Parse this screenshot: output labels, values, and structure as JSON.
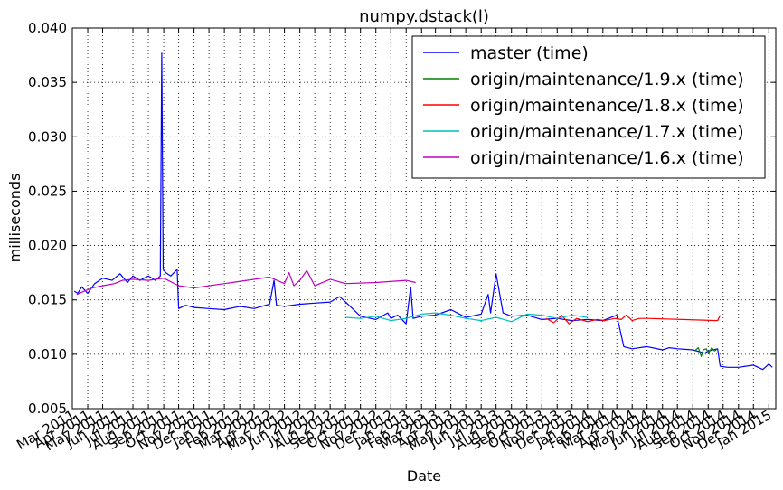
{
  "chart_data": {
    "type": "line",
    "title": "numpy.dstack(l)",
    "xlabel": "Date",
    "ylabel": "milliseconds",
    "ylim": [
      0.005,
      0.04
    ],
    "xlim": [
      "2011-03-01",
      "2015-01-15"
    ],
    "yticks": [
      "0.005",
      "0.010",
      "0.015",
      "0.020",
      "0.025",
      "0.030",
      "0.035",
      "0.040"
    ],
    "xticks": [
      "Mar 2011",
      "Apr 2011",
      "May 2011",
      "Jun 2011",
      "Jul 2011",
      "Aug 2011",
      "Sep 2011",
      "Oct 2011",
      "Nov 2011",
      "Dec 2011",
      "Jan 2012",
      "Feb 2012",
      "Mar 2012",
      "Apr 2012",
      "May 2012",
      "Jun 2012",
      "Jul 2012",
      "Aug 2012",
      "Sep 2012",
      "Oct 2012",
      "Nov 2012",
      "Dec 2012",
      "Jan 2013",
      "Feb 2013",
      "Mar 2013",
      "Apr 2013",
      "May 2013",
      "Jun 2013",
      "Jul 2013",
      "Aug 2013",
      "Sep 2013",
      "Oct 2013",
      "Nov 2013",
      "Dec 2013",
      "Jan 2014",
      "Feb 2014",
      "Mar 2014",
      "Apr 2014",
      "May 2014",
      "Jun 2014",
      "Jul 2014",
      "Aug 2014",
      "Sep 2014",
      "Oct 2014",
      "Nov 2014",
      "Dec 2014",
      "Jan 2015"
    ],
    "grid": true,
    "legend_position": "top-right",
    "series": [
      {
        "name": "master (time)",
        "color": "#0000ff",
        "x": [
          "2011-03-05",
          "2011-03-12",
          "2011-03-20",
          "2011-04-01",
          "2011-04-15",
          "2011-05-01",
          "2011-05-20",
          "2011-06-05",
          "2011-06-20",
          "2011-07-01",
          "2011-07-15",
          "2011-08-01",
          "2011-08-15",
          "2011-08-25",
          "2011-08-28",
          "2011-08-31",
          "2011-09-05",
          "2011-09-15",
          "2011-09-28",
          "2011-10-01",
          "2011-10-15",
          "2011-11-01",
          "2011-12-01",
          "2012-01-01",
          "2012-02-01",
          "2012-03-01",
          "2012-04-01",
          "2012-04-10",
          "2012-04-15",
          "2012-05-01",
          "2012-06-01",
          "2012-07-01",
          "2012-08-01",
          "2012-08-20",
          "2012-09-01",
          "2012-10-01",
          "2012-11-01",
          "2012-11-25",
          "2012-12-01",
          "2012-12-15",
          "2013-01-01",
          "2013-01-10",
          "2013-01-15",
          "2013-02-01",
          "2013-03-01",
          "2013-04-01",
          "2013-05-01",
          "2013-06-01",
          "2013-06-15",
          "2013-06-20",
          "2013-07-01",
          "2013-07-15",
          "2013-08-01",
          "2013-09-01",
          "2013-10-01",
          "2013-11-01",
          "2013-12-01",
          "2014-01-01",
          "2014-02-01",
          "2014-03-01",
          "2014-03-15",
          "2014-04-01",
          "2014-05-01",
          "2014-06-01",
          "2014-06-15",
          "2014-07-01",
          "2014-08-01",
          "2014-08-25",
          "2014-09-01",
          "2014-09-20",
          "2014-09-25",
          "2014-10-10",
          "2014-11-01",
          "2014-12-01",
          "2014-12-20",
          "2015-01-01",
          "2015-01-08"
        ],
        "y": [
          0.0158,
          0.0156,
          0.0162,
          0.0156,
          0.0165,
          0.017,
          0.0168,
          0.0174,
          0.0166,
          0.0172,
          0.0168,
          0.0172,
          0.0168,
          0.0172,
          0.0377,
          0.0178,
          0.0175,
          0.0172,
          0.0178,
          0.0142,
          0.0145,
          0.0143,
          0.0142,
          0.0141,
          0.0144,
          0.0142,
          0.0146,
          0.0168,
          0.0145,
          0.0144,
          0.0146,
          0.0147,
          0.0148,
          0.0153,
          0.0148,
          0.0135,
          0.0132,
          0.0138,
          0.0133,
          0.0136,
          0.0128,
          0.0162,
          0.0133,
          0.0135,
          0.0136,
          0.0141,
          0.0134,
          0.0137,
          0.0155,
          0.0138,
          0.0174,
          0.0138,
          0.0135,
          0.0136,
          0.0132,
          0.0133,
          0.0131,
          0.0132,
          0.0131,
          0.0136,
          0.0107,
          0.0105,
          0.0107,
          0.0104,
          0.0106,
          0.0105,
          0.0104,
          0.0101,
          0.0103,
          0.0105,
          0.0089,
          0.0088,
          0.0088,
          0.009,
          0.0086,
          0.0091,
          0.0088
        ]
      },
      {
        "name": "origin/maintenance/1.9.x (time)",
        "color": "#008000",
        "x": [
          "2014-08-05",
          "2014-08-12",
          "2014-08-18",
          "2014-08-22",
          "2014-08-28",
          "2014-09-02",
          "2014-09-08",
          "2014-09-14",
          "2014-09-20"
        ],
        "y": [
          0.0103,
          0.0106,
          0.0098,
          0.0104,
          0.0105,
          0.0101,
          0.0106,
          0.0103,
          0.0105
        ]
      },
      {
        "name": "origin/maintenance/1.8.x (time)",
        "color": "#ff0000",
        "x": [
          "2013-10-10",
          "2013-10-25",
          "2013-11-10",
          "2013-11-25",
          "2013-12-10",
          "2014-01-01",
          "2014-01-20",
          "2014-02-05",
          "2014-02-25",
          "2014-03-10",
          "2014-03-20",
          "2014-04-01",
          "2014-04-15",
          "2014-05-01",
          "2014-09-20",
          "2014-09-25"
        ],
        "y": [
          0.0133,
          0.0129,
          0.0136,
          0.0128,
          0.0133,
          0.013,
          0.0132,
          0.0131,
          0.0133,
          0.0132,
          0.0136,
          0.0131,
          0.0133,
          0.0133,
          0.0131,
          0.0136
        ]
      },
      {
        "name": "origin/maintenance/1.7.x (time)",
        "color": "#00bfbf",
        "x": [
          "2012-09-01",
          "2012-10-01",
          "2012-11-01",
          "2012-12-01",
          "2013-01-01",
          "2013-02-01",
          "2013-03-01",
          "2013-04-01",
          "2013-05-01",
          "2013-06-01",
          "2013-07-01",
          "2013-08-01",
          "2013-09-01",
          "2013-10-01",
          "2013-11-01",
          "2013-12-01",
          "2014-01-01"
        ],
        "y": [
          0.0134,
          0.0133,
          0.0135,
          0.0131,
          0.0133,
          0.0137,
          0.0138,
          0.0136,
          0.0133,
          0.0131,
          0.0134,
          0.013,
          0.0137,
          0.0136,
          0.0133,
          0.0136,
          0.0134
        ]
      },
      {
        "name": "origin/maintenance/1.6.x (time)",
        "color": "#bf00bf",
        "x": [
          "2011-03-10",
          "2011-03-25",
          "2011-04-10",
          "2011-05-01",
          "2011-05-25",
          "2011-06-10",
          "2011-07-01",
          "2011-08-01",
          "2011-09-01",
          "2011-10-01",
          "2011-11-01",
          "2012-01-01",
          "2012-04-01",
          "2012-05-01",
          "2012-05-10",
          "2012-05-20",
          "2012-06-01",
          "2012-06-15",
          "2012-07-01",
          "2012-08-01",
          "2012-09-01",
          "2012-11-01",
          "2013-01-01",
          "2013-01-20"
        ],
        "y": [
          0.0155,
          0.0158,
          0.0161,
          0.0163,
          0.0165,
          0.0168,
          0.0169,
          0.0168,
          0.017,
          0.0163,
          0.0161,
          0.0165,
          0.0171,
          0.0165,
          0.0175,
          0.0163,
          0.0168,
          0.0177,
          0.0163,
          0.0169,
          0.0165,
          0.0166,
          0.0168,
          0.0166
        ]
      }
    ]
  }
}
